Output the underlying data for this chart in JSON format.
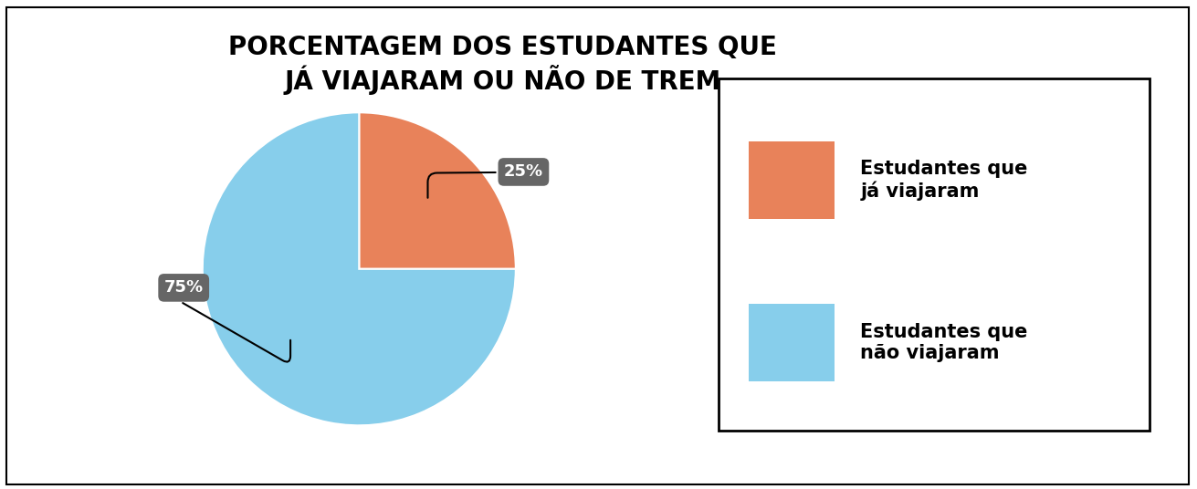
{
  "title": "PORCENTAGEM DOS ESTUDANTES QUE\nJÁ VIAJARAM OU NÃO DE TREM",
  "slices": [
    25,
    75
  ],
  "colors": [
    "#E8825A",
    "#87CEEB"
  ],
  "labels": [
    "Estudantes que\njá viajaram",
    "Estudantes que\nnão viajaram"
  ],
  "pct_labels": [
    "25%",
    "75%"
  ],
  "label_box_color": "#666666",
  "label_text_color": "#ffffff",
  "title_fontsize": 20,
  "legend_fontsize": 15,
  "pct_fontsize": 13,
  "background_color": "#ffffff",
  "startangle": 90
}
